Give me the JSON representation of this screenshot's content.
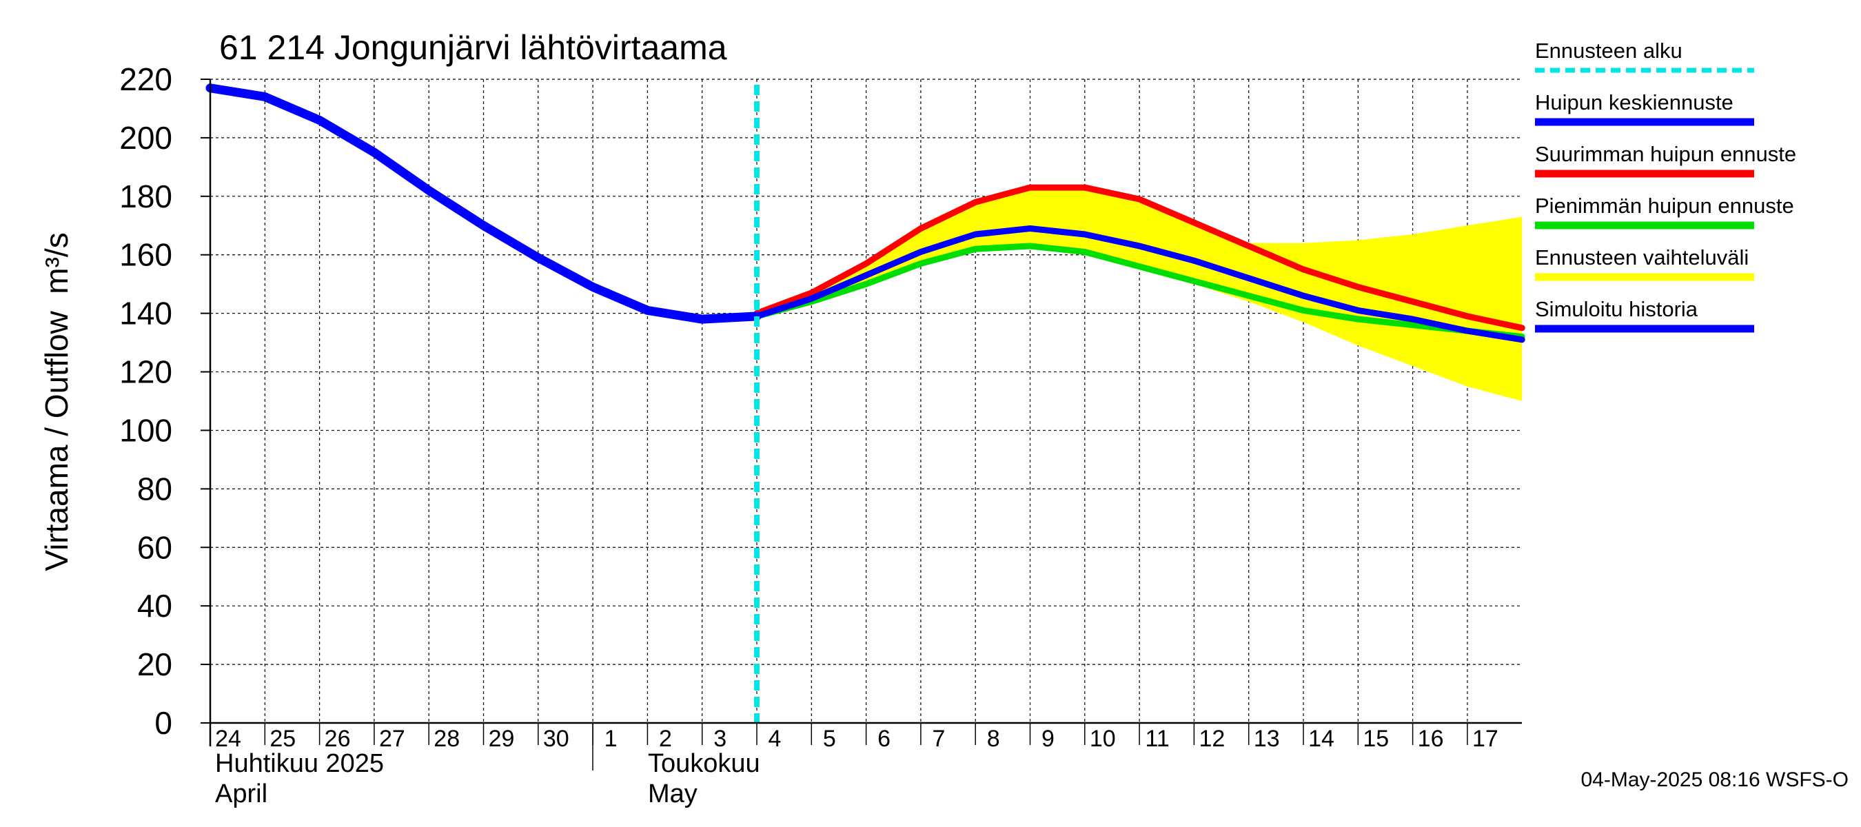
{
  "chart_data": {
    "type": "line",
    "title": "61 214 Jongunjärvi lähtövirtaama",
    "ylabel_fi": "Virtaama / Outflow",
    "ylabel_unit": "m³/s",
    "ylim": [
      0,
      220
    ],
    "yticks": [
      0,
      20,
      40,
      60,
      80,
      100,
      120,
      140,
      160,
      180,
      200,
      220
    ],
    "grid": true,
    "x_days": [
      "24",
      "25",
      "26",
      "27",
      "28",
      "29",
      "30",
      "1",
      "2",
      "3",
      "4",
      "5",
      "6",
      "7",
      "8",
      "9",
      "10",
      "11",
      "12",
      "13",
      "14",
      "15",
      "16",
      "17"
    ],
    "month_labels": [
      {
        "fi": "Huhtikuu  2025",
        "en": "April"
      },
      {
        "fi": "Toukokuu",
        "en": "May"
      }
    ],
    "forecast_start": "2025-05-04",
    "series": [
      {
        "name": "Simuloitu historia",
        "color": "#0000ff",
        "x": [
          "2025-04-24",
          "2025-04-25",
          "2025-04-26",
          "2025-04-27",
          "2025-04-28",
          "2025-04-29",
          "2025-04-30",
          "2025-05-01",
          "2025-05-02",
          "2025-05-03",
          "2025-05-04"
        ],
        "y": [
          217,
          214,
          206,
          195,
          182,
          170,
          159,
          149,
          141,
          138,
          139
        ]
      },
      {
        "name": "Huipun keskiennuste",
        "color": "#0000ff",
        "x": [
          "2025-05-04",
          "2025-05-05",
          "2025-05-06",
          "2025-05-07",
          "2025-05-08",
          "2025-05-09",
          "2025-05-10",
          "2025-05-11",
          "2025-05-12",
          "2025-05-13",
          "2025-05-14",
          "2025-05-15",
          "2025-05-16",
          "2025-05-17",
          "2025-05-18"
        ],
        "y": [
          139,
          145,
          153,
          161,
          167,
          169,
          167,
          163,
          158,
          152,
          146,
          141,
          138,
          134,
          131
        ]
      },
      {
        "name": "Suurimman huipun ennuste",
        "color": "#ff0000",
        "x": [
          "2025-05-04",
          "2025-05-05",
          "2025-05-06",
          "2025-05-07",
          "2025-05-08",
          "2025-05-09",
          "2025-05-10",
          "2025-05-11",
          "2025-05-12",
          "2025-05-13",
          "2025-05-14",
          "2025-05-15",
          "2025-05-16",
          "2025-05-17",
          "2025-05-18"
        ],
        "y": [
          140,
          147,
          157,
          169,
          178,
          183,
          183,
          179,
          171,
          163,
          155,
          149,
          144,
          139,
          135
        ]
      },
      {
        "name": "Pienimmän huipun ennuste",
        "color": "#00dd00",
        "x": [
          "2025-05-04",
          "2025-05-05",
          "2025-05-06",
          "2025-05-07",
          "2025-05-08",
          "2025-05-09",
          "2025-05-10",
          "2025-05-11",
          "2025-05-12",
          "2025-05-13",
          "2025-05-14",
          "2025-05-15",
          "2025-05-16",
          "2025-05-17",
          "2025-05-18"
        ],
        "y": [
          139,
          144,
          150,
          157,
          162,
          163,
          161,
          156,
          151,
          146,
          141,
          138,
          136,
          134,
          132
        ]
      }
    ],
    "band": {
      "name": "Ennusteen vaihteluväli",
      "color": "#ffff00",
      "x": [
        "2025-05-04",
        "2025-05-05",
        "2025-05-06",
        "2025-05-07",
        "2025-05-08",
        "2025-05-09",
        "2025-05-10",
        "2025-05-11",
        "2025-05-12",
        "2025-05-13",
        "2025-05-14",
        "2025-05-15",
        "2025-05-16",
        "2025-05-17",
        "2025-05-18"
      ],
      "upper": [
        140,
        147,
        157,
        169,
        178,
        183,
        183,
        179,
        171,
        164,
        164,
        165,
        167,
        170,
        173
      ],
      "lower": [
        139,
        144,
        150,
        157,
        162,
        163,
        161,
        156,
        150,
        144,
        137,
        129,
        122,
        115,
        110
      ]
    },
    "legend": [
      {
        "label": "Ennusteen alku",
        "color": "#00e5e5",
        "style": "dashed"
      },
      {
        "label": "Huipun keskiennuste",
        "color": "#0000ff",
        "style": "solid"
      },
      {
        "label": "Suurimman huipun ennuste",
        "color": "#ff0000",
        "style": "solid"
      },
      {
        "label": "Pienimmän huipun ennuste",
        "color": "#00dd00",
        "style": "solid"
      },
      {
        "label": "Ennusteen vaihteluväli",
        "color": "#ffff00",
        "style": "solid"
      },
      {
        "label": "Simuloitu historia",
        "color": "#0000ff",
        "style": "solid"
      }
    ],
    "legend_position": "right"
  },
  "footer": "04-May-2025 08:16 WSFS-O"
}
